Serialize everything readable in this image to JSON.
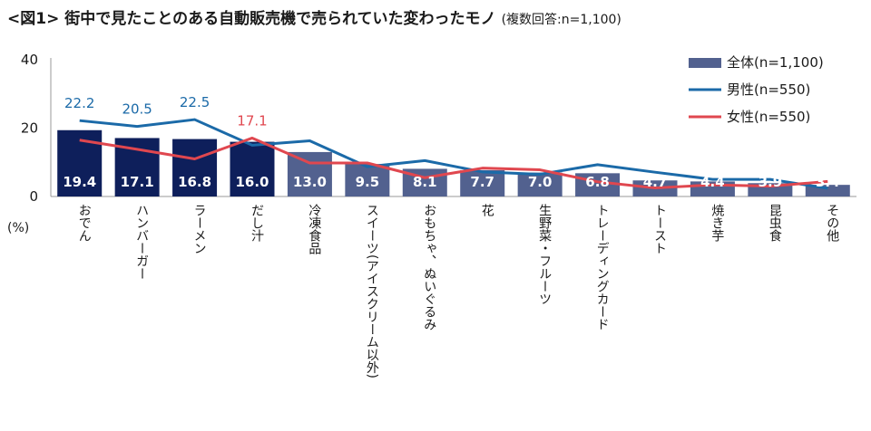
{
  "title": "<図1> 街中で見たことのある自動販売機で売られていた変わったモノ",
  "subtitle": "(複数回答:n=1,100)",
  "unit_label": "(%)",
  "chart_data": {
    "type": "bar",
    "categories": [
      "おでん",
      "ハンバーガー",
      "ラーメン",
      "だし汁",
      "冷凍食品",
      "スイーツ(アイスクリーム以外)",
      "おもちゃ、ぬいぐるみ",
      "花",
      "生野菜・フルーツ",
      "トレーディングカード",
      "トースト",
      "焼き芋",
      "昆虫食",
      "その他"
    ],
    "series": [
      {
        "name": "全体(n=1,100)",
        "kind": "bar",
        "color": "#52618f",
        "highlight_color": "#0e1f5b",
        "values": [
          19.4,
          17.1,
          16.8,
          16.0,
          13.0,
          9.5,
          8.1,
          7.7,
          7.0,
          6.8,
          4.7,
          4.4,
          3.9,
          3.4
        ]
      },
      {
        "name": "男性(n=550)",
        "kind": "line",
        "color": "#1b6aa8",
        "values": [
          22.2,
          20.5,
          22.5,
          15.0,
          16.3,
          8.7,
          10.5,
          7.2,
          6.5,
          9.3,
          7.1,
          5.0,
          5.0,
          2.4
        ]
      },
      {
        "name": "女性(n=550)",
        "kind": "line",
        "color": "#e0474f",
        "values": [
          16.5,
          13.8,
          11.0,
          17.1,
          9.8,
          9.8,
          5.5,
          8.3,
          7.8,
          4.3,
          2.5,
          3.4,
          3.0,
          4.4
        ]
      }
    ],
    "bar_labels": [
      "19.4",
      "17.1",
      "16.8",
      "16.0",
      "13.0",
      "9.5",
      "8.1",
      "7.7",
      "7.0",
      "6.8",
      "4.7",
      "4.4",
      "3.9",
      "3.4"
    ],
    "highlight_top": 4,
    "line_labels": [
      {
        "series": 1,
        "index": 0,
        "text": "22.2"
      },
      {
        "series": 1,
        "index": 1,
        "text": "20.5"
      },
      {
        "series": 1,
        "index": 2,
        "text": "22.5"
      },
      {
        "series": 2,
        "index": 3,
        "text": "17.1"
      }
    ],
    "ylim": [
      0,
      40
    ],
    "yticks": [
      "0",
      "20",
      "40"
    ],
    "legend": "top-right",
    "grid": false
  }
}
